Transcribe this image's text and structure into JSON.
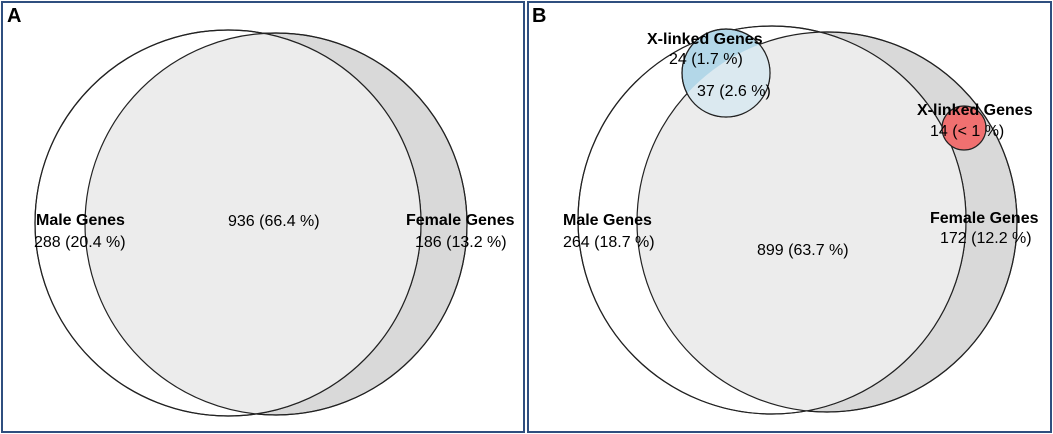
{
  "panels": [
    {
      "letter": "A",
      "sets": {
        "male": {
          "title": "Male Genes",
          "count": "288 (20.4 %)"
        },
        "female": {
          "title": "Female Genes",
          "count": "186 (13.2 %)"
        }
      },
      "overlap": {
        "count": "936 (66.4 %)"
      }
    },
    {
      "letter": "B",
      "sets": {
        "male": {
          "title": "Male Genes",
          "count": "264 (18.7 %)"
        },
        "female": {
          "title": "Female Genes",
          "count": "172 (12.2 %)"
        },
        "x_linked_male": {
          "title": "X-linked Genes",
          "count": "24 (1.7 %)",
          "overlap_count": "37 (2.6 %)"
        },
        "x_linked_female": {
          "title": "X-linked Genes",
          "count": "14 (< 1 %)"
        }
      },
      "overlap": {
        "count": "899 (63.7 %)"
      }
    }
  ],
  "colors": {
    "male_fill": "#ffffff",
    "female_fill": "#d9d9d9",
    "overlap_fill": "#ececec",
    "x_linked_male_fill": "#b3d7e8",
    "x_linked_male_overlap_fill": "#dbe9f0",
    "x_linked_female_fill": "#f07070",
    "frame": "#2f4f7f"
  }
}
